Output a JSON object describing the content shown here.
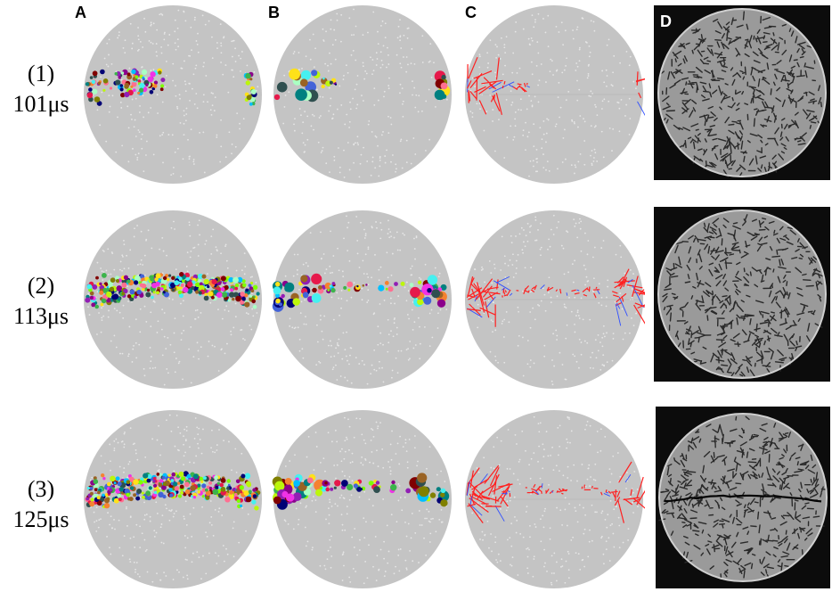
{
  "figure": {
    "columns": [
      "A",
      "B",
      "C",
      "D"
    ],
    "rows": [
      {
        "index": "(1)",
        "time": "101μs"
      },
      {
        "index": "(2)",
        "time": "113μs"
      },
      {
        "index": "(3)",
        "time": "125μs"
      }
    ]
  },
  "colors": {
    "disc_gray": "#c4c4c4",
    "disc_speck": "#e6e6e6",
    "tension": "#ff2020",
    "compression": "#3050ff",
    "photo_bg": "#0c0c0c"
  },
  "panels": {
    "A": {
      "description": "fragment-clusters",
      "progress": [
        0.22,
        0.9,
        0.95
      ]
    },
    "B": {
      "description": "fragment-bubbles",
      "progress": [
        0.22,
        0.9,
        0.95
      ]
    },
    "C": {
      "description": "crack-vectors",
      "progress": [
        0.22,
        0.9,
        0.95
      ]
    },
    "D": {
      "description": "experiment-photo",
      "progress": [
        0.0,
        0.0,
        1.0
      ]
    }
  }
}
